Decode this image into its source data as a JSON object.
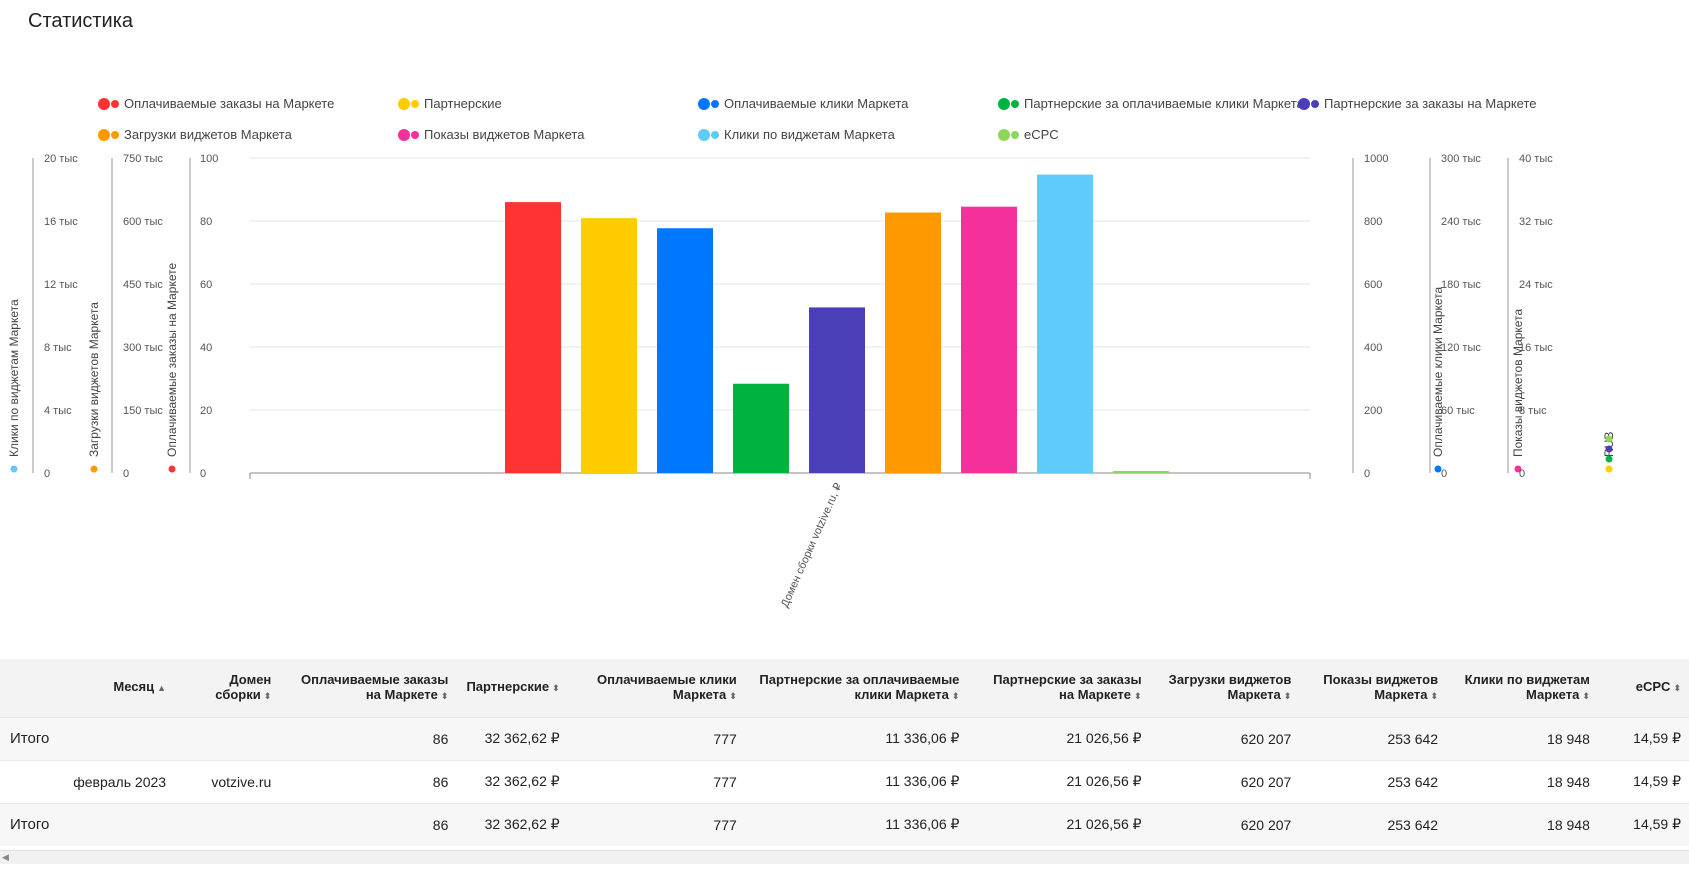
{
  "page": {
    "title": "Статистика"
  },
  "legend": {
    "rows": [
      [
        {
          "label": "Оплачиваемые заказы на Маркете",
          "color": "#ff3333"
        },
        {
          "label": "Партнерские",
          "color": "#ffcc00"
        },
        {
          "label": "Оплачиваемые клики Маркета",
          "color": "#0077ff"
        },
        {
          "label": "Партнерские за оплачиваемые клики Маркета",
          "color": "#00b341"
        },
        {
          "label": "Партнерские за заказы на Маркете",
          "color": "#4b3fb8"
        }
      ],
      [
        {
          "label": "Загрузки виджетов Маркета",
          "color": "#ff9900"
        },
        {
          "label": "Показы виджетов Маркета",
          "color": "#f5309b"
        },
        {
          "label": "Клики по виджетам Маркета",
          "color": "#5ecbfa"
        },
        {
          "label": "eCPC",
          "color": "#8fd65a"
        }
      ]
    ]
  },
  "chart_data": {
    "type": "bar",
    "categories": [
      "Домен сборки votzive.ru, ₽"
    ],
    "left_axes": [
      {
        "title": "Клики по виджетам Маркета",
        "ticks": [
          "0",
          "4 тыс",
          "8 тыс",
          "12 тыс",
          "16 тыс",
          "20 тыс"
        ],
        "max": 20000,
        "dots": [
          "#5ecbfa"
        ]
      },
      {
        "title": "Загрузки виджетов Маркета",
        "ticks": [
          "0",
          "150 тыс",
          "300 тыс",
          "450 тыс",
          "600 тыс",
          "750 тыс"
        ],
        "max": 750000,
        "dots": [
          "#ff9900"
        ]
      },
      {
        "title": "Оплачиваемые заказы на Маркете",
        "ticks": [
          "0",
          "20",
          "40",
          "60",
          "80",
          "100"
        ],
        "max": 100,
        "dots": [
          "#ff3333"
        ]
      }
    ],
    "right_axes": [
      {
        "title": "Оплачиваемые клики Маркета",
        "ticks": [
          "0",
          "200",
          "400",
          "600",
          "800",
          "1000"
        ],
        "max": 1000,
        "dots": [
          "#0077ff"
        ]
      },
      {
        "title": "Показы виджетов Маркета",
        "ticks": [
          "0",
          "60 тыс",
          "120 тыс",
          "180 тыс",
          "240 тыс",
          "300 тыс"
        ],
        "max": 300000,
        "dots": [
          "#f5309b"
        ]
      },
      {
        "title": "RUB",
        "ticks": [
          "0",
          "8 тыс",
          "16 тыс",
          "24 тыс",
          "32 тыс",
          "40 тыс"
        ],
        "max": 40000,
        "dots": [
          "#ffcc00",
          "#00b341",
          "#4b3fb8",
          "#8fd65a"
        ]
      }
    ],
    "series": [
      {
        "name": "Оплачиваемые заказы на Маркете",
        "value": 86,
        "axis_max": 100,
        "color": "#ff3333"
      },
      {
        "name": "Партнерские",
        "value": 32362.62,
        "axis_max": 40000,
        "color": "#ffcc00"
      },
      {
        "name": "Оплачиваемые клики Маркета",
        "value": 777,
        "axis_max": 1000,
        "color": "#0077ff"
      },
      {
        "name": "Партнерские за оплачиваемые клики Маркета",
        "value": 11336.06,
        "axis_max": 40000,
        "color": "#00b341"
      },
      {
        "name": "Партнерские за заказы на Маркете",
        "value": 21026.56,
        "axis_max": 40000,
        "color": "#4b3fb8"
      },
      {
        "name": "Загрузки виджетов Маркета",
        "value": 620207,
        "axis_max": 750000,
        "color": "#ff9900"
      },
      {
        "name": "Показы виджетов Маркета",
        "value": 253642,
        "axis_max": 300000,
        "color": "#f5309b"
      },
      {
        "name": "Клики по виджетам Маркета",
        "value": 18948,
        "axis_max": 20000,
        "color": "#5ecbfa"
      },
      {
        "name": "eCPC",
        "value": 14.59,
        "axis_max": 40000,
        "color": "#8fd65a"
      }
    ],
    "grid": true
  },
  "table": {
    "headers": [
      "Месяц",
      "Домен сборки",
      "Оплачиваемые заказы на Маркете",
      "Партнерские",
      "Оплачиваемые клики Маркета",
      "Партнерские за оплачиваемые клики Маркета",
      "Партнерские за заказы на Маркете",
      "Загрузки виджетов Маркета",
      "Показы виджетов Маркета",
      "Клики по виджетам Маркета",
      "eCPC"
    ],
    "sort_up": "▲",
    "sort_both": "⬍",
    "rows": [
      {
        "type": "total",
        "cells": [
          "Итого",
          "",
          "86",
          "32 362,62 ₽",
          "777",
          "11 336,06 ₽",
          "21 026,56 ₽",
          "620 207",
          "253 642",
          "18 948",
          "14,59 ₽"
        ]
      },
      {
        "type": "data",
        "cells": [
          "февраль 2023",
          "votzive.ru",
          "86",
          "32 362,62 ₽",
          "777",
          "11 336,06 ₽",
          "21 026,56 ₽",
          "620 207",
          "253 642",
          "18 948",
          "14,59 ₽"
        ]
      },
      {
        "type": "total",
        "cells": [
          "Итого",
          "",
          "86",
          "32 362,62 ₽",
          "777",
          "11 336,06 ₽",
          "21 026,56 ₽",
          "620 207",
          "253 642",
          "18 948",
          "14,59 ₽"
        ]
      }
    ]
  }
}
